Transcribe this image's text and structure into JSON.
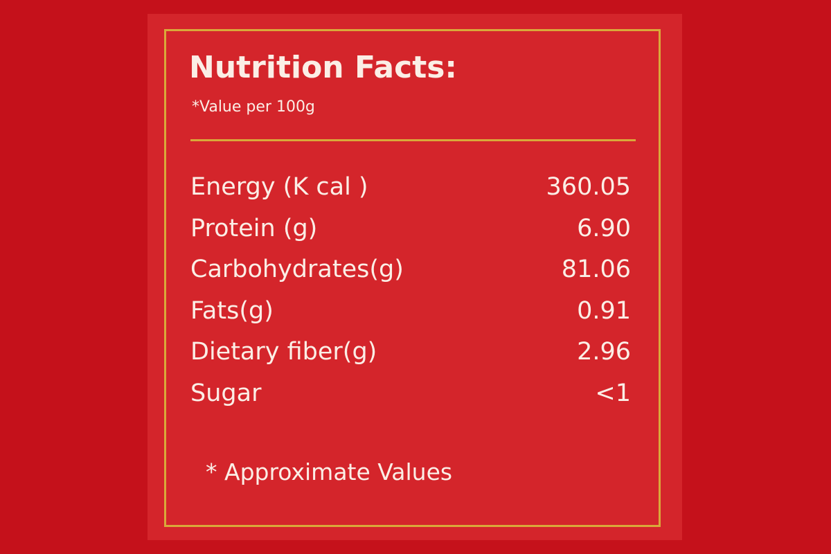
{
  "header": {
    "title": "Nutrition Facts:",
    "subtitle": "*Value per 100g"
  },
  "table": {
    "rows": [
      [
        "Energy (K cal )",
        "360.05"
      ],
      [
        "Protein (g)",
        "6.90"
      ],
      [
        "Carbohydrates(g)",
        "81.06"
      ],
      [
        "Fats(g)",
        "0.91"
      ],
      [
        "Dietary fiber(g)",
        "2.96"
      ],
      [
        "Sugar",
        "<1"
      ]
    ]
  },
  "footer": {
    "note": "* Approximate Values"
  }
}
